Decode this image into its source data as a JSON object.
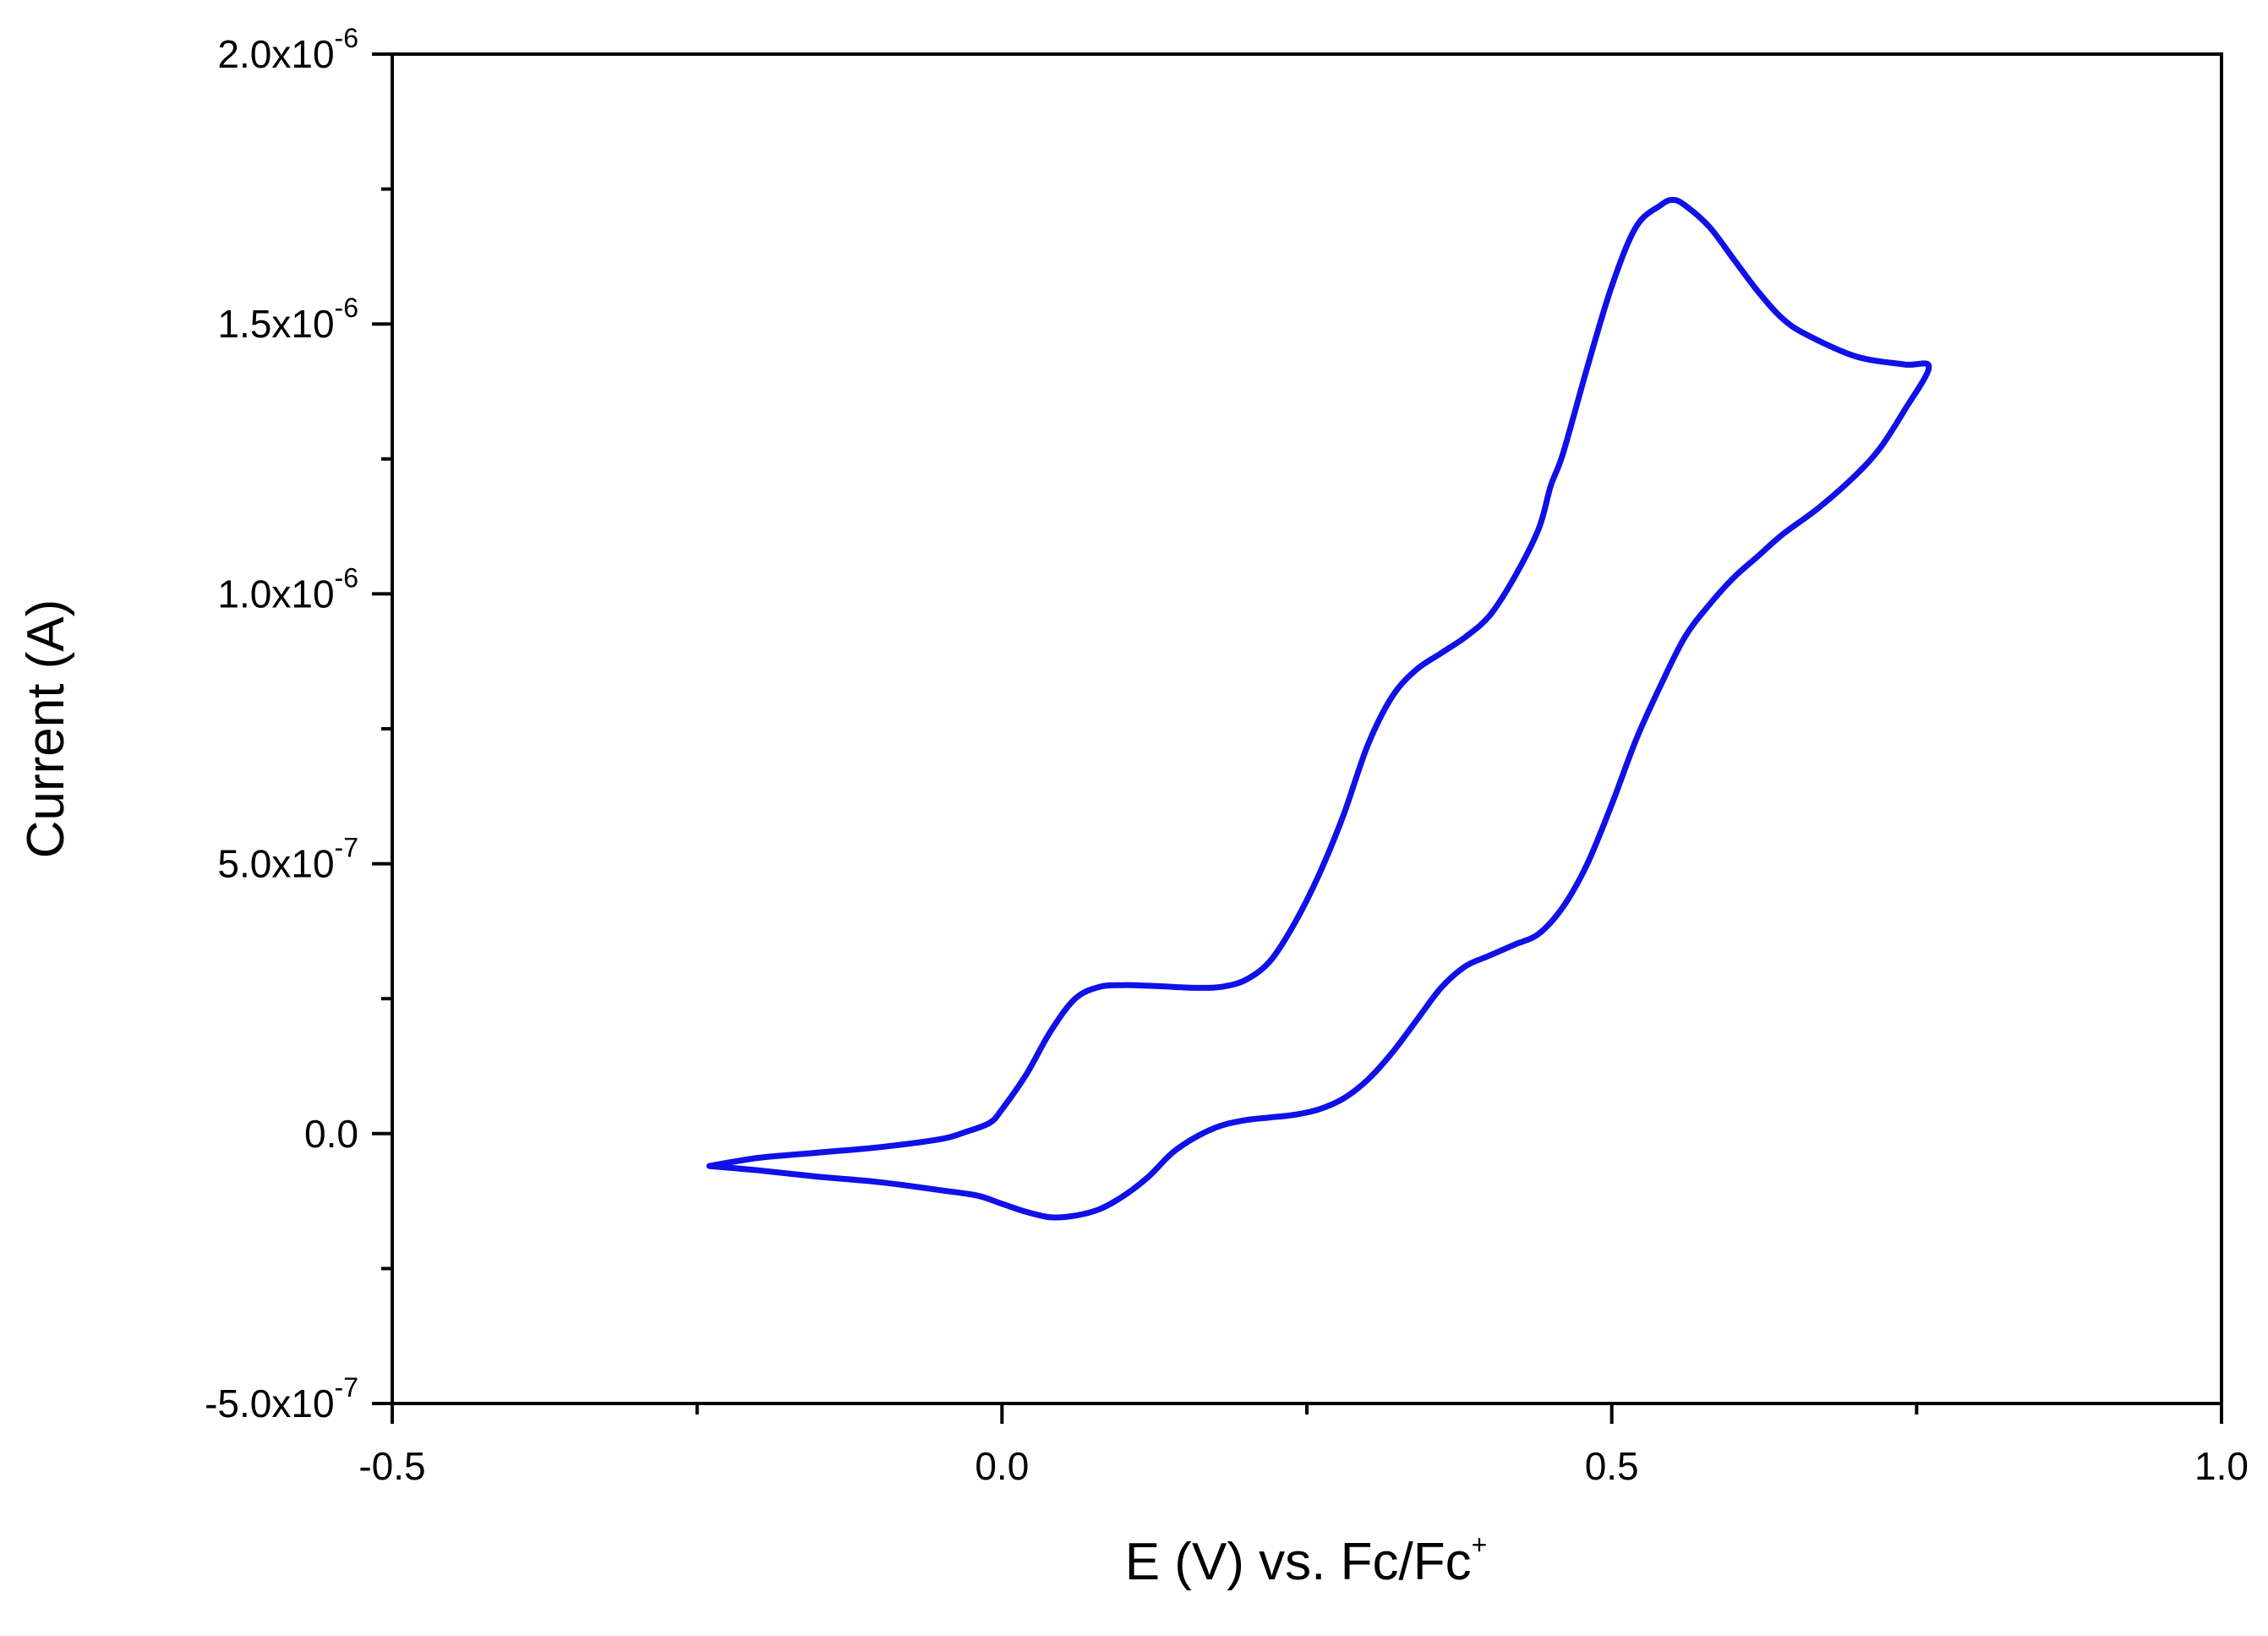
{
  "chart_data": {
    "type": "line",
    "xlabel": {
      "main": "E (V) vs. Fc/Fc",
      "sup": "+"
    },
    "ylabel": "Current (A)",
    "xlim": [
      -0.5,
      1.0
    ],
    "ylim": [
      -5e-07,
      2e-06
    ],
    "x_ticks": [
      {
        "value": -0.5,
        "label": "-0.5"
      },
      {
        "value": 0.0,
        "label": "0.0"
      },
      {
        "value": 0.5,
        "label": "0.5"
      },
      {
        "value": 1.0,
        "label": "1.0"
      }
    ],
    "x_minor_ticks": [
      -0.25,
      0.25,
      0.75
    ],
    "y_ticks": [
      {
        "value": -5e-07,
        "mantissa": "-5.0x10",
        "exp": "-7"
      },
      {
        "value": 0.0,
        "mantissa": "0.0",
        "exp": ""
      },
      {
        "value": 5e-07,
        "mantissa": "5.0x10",
        "exp": "-7"
      },
      {
        "value": 1e-06,
        "mantissa": "1.0x10",
        "exp": "-6"
      },
      {
        "value": 1.5e-06,
        "mantissa": "1.5x10",
        "exp": "-6"
      },
      {
        "value": 2e-06,
        "mantissa": "2.0x10",
        "exp": "-6"
      }
    ],
    "y_minor_ticks": [
      -2.5e-07,
      2.5e-07,
      7.5e-07,
      1.25e-06,
      1.75e-06
    ],
    "grid": false,
    "legend": "none",
    "series": [
      {
        "color": "#1010e8",
        "x": [
          -0.24,
          -0.2,
          -0.15,
          -0.1,
          -0.05,
          -0.03,
          -0.01,
          0.0,
          0.02,
          0.04,
          0.06,
          0.08,
          0.1,
          0.12,
          0.14,
          0.16,
          0.18,
          0.2,
          0.22,
          0.24,
          0.26,
          0.28,
          0.3,
          0.32,
          0.34,
          0.36,
          0.38,
          0.4,
          0.42,
          0.44,
          0.45,
          0.46,
          0.48,
          0.5,
          0.52,
          0.54,
          0.55,
          0.56,
          0.58,
          0.6,
          0.62,
          0.64,
          0.66,
          0.7,
          0.74,
          0.76,
          0.74,
          0.72,
          0.7,
          0.67,
          0.64,
          0.62,
          0.6,
          0.58,
          0.56,
          0.54,
          0.52,
          0.5,
          0.48,
          0.46,
          0.44,
          0.42,
          0.4,
          0.38,
          0.36,
          0.34,
          0.32,
          0.3,
          0.28,
          0.26,
          0.24,
          0.22,
          0.2,
          0.18,
          0.16,
          0.14,
          0.12,
          0.1,
          0.08,
          0.06,
          0.04,
          0.02,
          0.0,
          -0.02,
          -0.05,
          -0.1,
          -0.15,
          -0.2,
          -0.24
        ],
        "y": [
          -6e-08,
          -4.5e-08,
          -3.5e-08,
          -2.5e-08,
          -1e-08,
          3e-09,
          2e-08,
          4.5e-08,
          1.1e-07,
          1.9e-07,
          2.5e-07,
          2.72e-07,
          2.75e-07,
          2.74e-07,
          2.72e-07,
          2.7e-07,
          2.72e-07,
          2.85e-07,
          3.2e-07,
          3.9e-07,
          4.8e-07,
          5.9e-07,
          7.2e-07,
          8.1e-07,
          8.6e-07,
          8.9e-07,
          9.2e-07,
          9.6e-07,
          1.03e-06,
          1.12e-06,
          1.2e-06,
          1.26e-06,
          1.42e-06,
          1.57e-06,
          1.68e-06,
          1.72e-06,
          1.73e-06,
          1.72e-06,
          1.68e-06,
          1.62e-06,
          1.56e-06,
          1.51e-06,
          1.48e-06,
          1.44e-06,
          1.425e-06,
          1.42e-06,
          1.34e-06,
          1.27e-06,
          1.22e-06,
          1.16e-06,
          1.11e-06,
          1.07e-06,
          1.03e-06,
          9.8e-07,
          9.2e-07,
          8.3e-07,
          7.3e-07,
          6.1e-07,
          5e-07,
          4.2e-07,
          3.7e-07,
          3.5e-07,
          3.3e-07,
          3.1e-07,
          2.7e-07,
          2.1e-07,
          1.5e-07,
          1e-07,
          6.5e-08,
          4.5e-08,
          3.5e-08,
          3e-08,
          2.5e-08,
          1.5e-08,
          -5e-09,
          -3.5e-08,
          -8e-08,
          -1.15e-07,
          -1.4e-07,
          -1.52e-07,
          -1.55e-07,
          -1.45e-07,
          -1.3e-07,
          -1.15e-07,
          -1.05e-07,
          -9e-08,
          -8e-08,
          -6.8e-08,
          -6e-08
        ]
      }
    ]
  }
}
